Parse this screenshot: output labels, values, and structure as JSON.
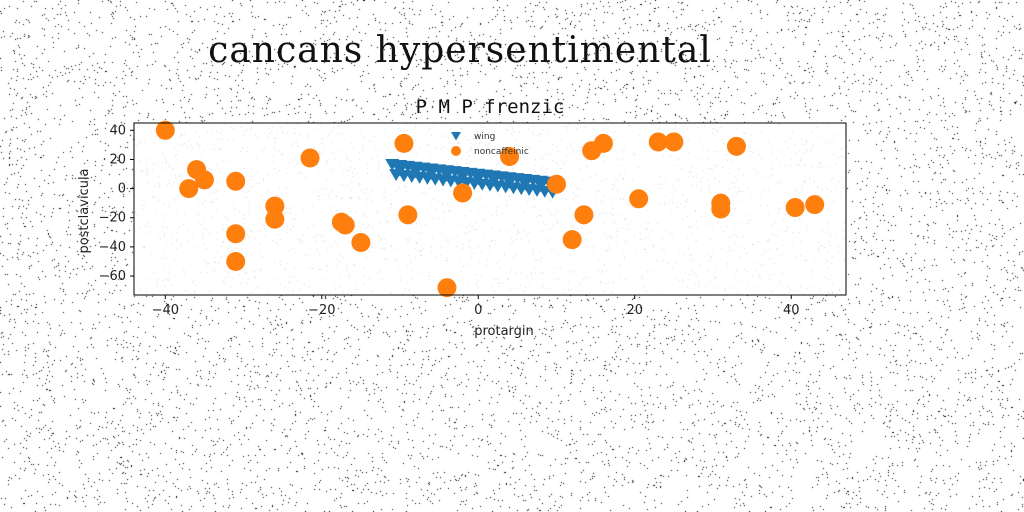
{
  "page": {
    "title": "cancans hypersentimental"
  },
  "chart_data": {
    "type": "scatter",
    "title": "P M P frenzic",
    "xlabel": "protargin",
    "ylabel": "postclavicula",
    "xlim": [
      -44,
      47
    ],
    "ylim": [
      -73,
      45
    ],
    "xticks": [
      -40,
      -20,
      0,
      20,
      40
    ],
    "yticks": [
      -60,
      -40,
      -20,
      0,
      20,
      40
    ],
    "grid": false,
    "legend_position": "top-center",
    "series": [
      {
        "name": "wing",
        "marker": "triangle-down",
        "color": "#1f77b4",
        "points": [
          [
            -11.0,
            16.5
          ],
          [
            -10.0,
            15.8
          ],
          [
            -9.0,
            15.2
          ],
          [
            -8.0,
            14.6
          ],
          [
            -7.0,
            14.0
          ],
          [
            -6.0,
            13.4
          ],
          [
            -5.0,
            12.8
          ],
          [
            -4.0,
            12.2
          ],
          [
            -3.0,
            11.6
          ],
          [
            -2.0,
            11.0
          ],
          [
            -1.0,
            10.4
          ],
          [
            0.0,
            9.8
          ],
          [
            1.0,
            9.2
          ],
          [
            2.0,
            8.6
          ],
          [
            3.0,
            8.0
          ],
          [
            4.0,
            7.4
          ],
          [
            5.0,
            6.8
          ],
          [
            6.0,
            6.2
          ],
          [
            7.0,
            5.6
          ],
          [
            8.0,
            5.0
          ],
          [
            9.0,
            4.4
          ],
          [
            -10.5,
            9.5
          ],
          [
            -9.5,
            8.8
          ],
          [
            -8.5,
            8.2
          ],
          [
            -7.5,
            7.6
          ],
          [
            -6.5,
            7.0
          ],
          [
            -5.5,
            6.4
          ],
          [
            -4.5,
            5.8
          ],
          [
            -3.5,
            5.2
          ],
          [
            -2.5,
            4.6
          ],
          [
            -1.5,
            4.0
          ],
          [
            -0.5,
            3.4
          ],
          [
            0.5,
            2.8
          ],
          [
            1.5,
            2.2
          ],
          [
            2.5,
            1.6
          ],
          [
            3.5,
            1.0
          ],
          [
            4.5,
            0.4
          ],
          [
            5.5,
            -0.2
          ],
          [
            6.5,
            -0.8
          ],
          [
            7.5,
            -1.4
          ],
          [
            8.5,
            -2.0
          ],
          [
            9.5,
            -2.6
          ],
          [
            -10.0,
            12.5
          ],
          [
            -8.0,
            11.3
          ],
          [
            -6.0,
            10.2
          ],
          [
            -4.0,
            9.0
          ],
          [
            -2.0,
            7.8
          ],
          [
            0.0,
            6.6
          ],
          [
            2.0,
            5.4
          ],
          [
            4.0,
            4.2
          ],
          [
            6.0,
            3.0
          ],
          [
            8.0,
            1.8
          ],
          [
            10.0,
            0.6
          ]
        ]
      },
      {
        "name": "noncaffeinic",
        "marker": "circle",
        "color": "#ff7f0e",
        "points": [
          [
            -40,
            40
          ],
          [
            -37,
            0
          ],
          [
            -36,
            13
          ],
          [
            -35,
            6
          ],
          [
            -31,
            5
          ],
          [
            -31,
            -31
          ],
          [
            -31,
            -50
          ],
          [
            -26,
            -12
          ],
          [
            -26,
            -21
          ],
          [
            -21.5,
            21
          ],
          [
            -17.5,
            -23
          ],
          [
            -17,
            -25
          ],
          [
            -15,
            -37
          ],
          [
            -9.5,
            31
          ],
          [
            -9,
            -18
          ],
          [
            -4,
            -68
          ],
          [
            -2,
            -3
          ],
          [
            4,
            22
          ],
          [
            10,
            3
          ],
          [
            12,
            -35
          ],
          [
            13.5,
            -18
          ],
          [
            14.5,
            26
          ],
          [
            16,
            31
          ],
          [
            20.5,
            -7
          ],
          [
            23,
            32
          ],
          [
            25,
            32
          ],
          [
            31,
            -10
          ],
          [
            31,
            -14
          ],
          [
            33,
            29
          ],
          [
            40.5,
            -13
          ],
          [
            43,
            -11
          ]
        ]
      }
    ]
  }
}
